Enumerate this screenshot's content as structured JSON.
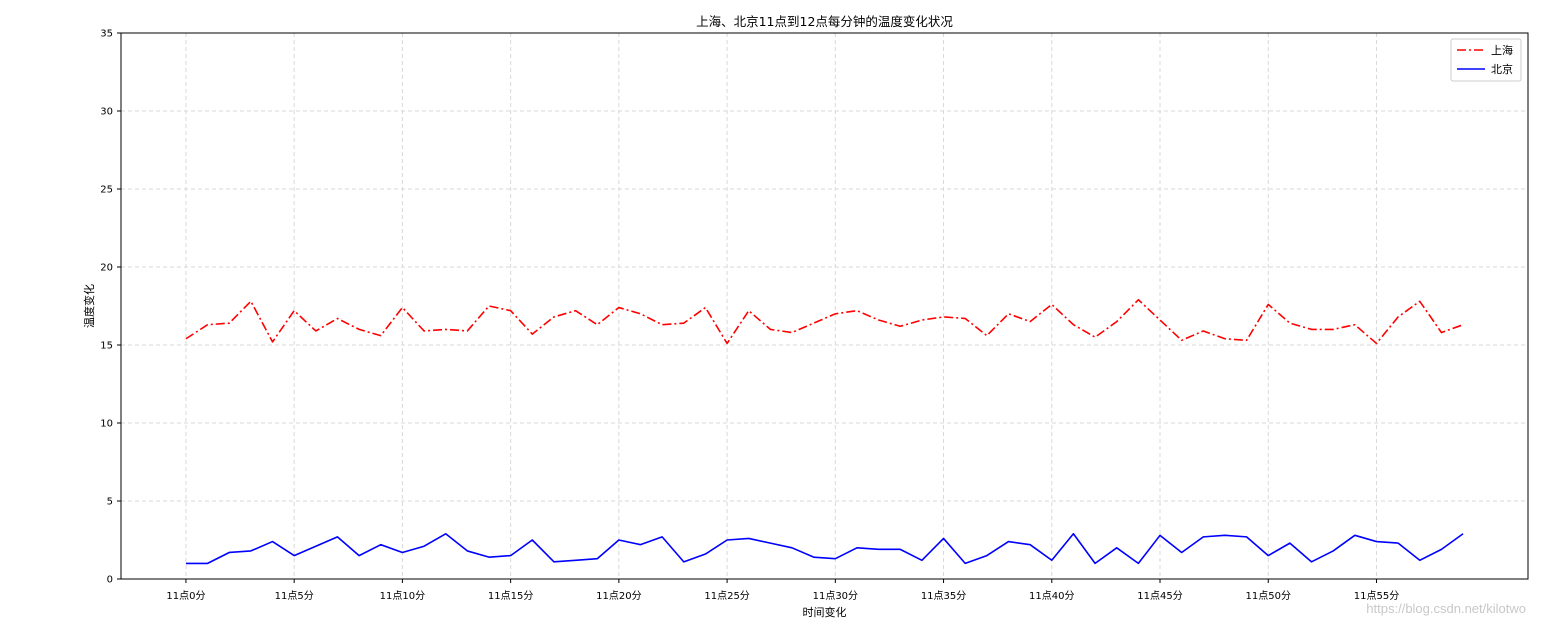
{
  "chart_data": {
    "type": "line",
    "title": "上海、北京11点到12点每分钟的温度变化状况",
    "xlabel": "时间变化",
    "ylabel": "温度变化",
    "x": [
      0,
      1,
      2,
      3,
      4,
      5,
      6,
      7,
      8,
      9,
      10,
      11,
      12,
      13,
      14,
      15,
      16,
      17,
      18,
      19,
      20,
      21,
      22,
      23,
      24,
      25,
      26,
      27,
      28,
      29,
      30,
      31,
      32,
      33,
      34,
      35,
      36,
      37,
      38,
      39,
      40,
      41,
      42,
      43,
      44,
      45,
      46,
      47,
      48,
      49,
      50,
      51,
      52,
      53,
      54,
      55,
      56,
      57,
      58,
      59
    ],
    "xticks": [
      0,
      5,
      10,
      15,
      20,
      25,
      30,
      35,
      40,
      45,
      50,
      55
    ],
    "xticklabels": [
      "11点0分",
      "11点5分",
      "11点10分",
      "11点15分",
      "11点20分",
      "11点25分",
      "11点30分",
      "11点35分",
      "11点40分",
      "11点45分",
      "11点50分",
      "11点55分"
    ],
    "ylim": [
      0,
      35
    ],
    "yticks": [
      0,
      5,
      10,
      15,
      20,
      25,
      30,
      35
    ],
    "grid": true,
    "legend_position": "top-right",
    "series": [
      {
        "name": "上海",
        "color": "#ff0000",
        "linestyle": "dashdot",
        "values": [
          15.4,
          16.3,
          16.4,
          17.8,
          15.2,
          17.2,
          15.9,
          16.7,
          16.0,
          15.6,
          17.4,
          15.9,
          16.0,
          15.9,
          17.5,
          17.2,
          15.7,
          16.8,
          17.2,
          16.3,
          17.4,
          17.0,
          16.3,
          16.4,
          17.4,
          15.1,
          17.2,
          16.0,
          15.8,
          16.4,
          17.0,
          17.2,
          16.6,
          16.2,
          16.6,
          16.8,
          16.7,
          15.6,
          17.0,
          16.5,
          17.6,
          16.3,
          15.5,
          16.5,
          17.9,
          16.6,
          15.3,
          15.9,
          15.4,
          15.3,
          17.6,
          16.4,
          16.0,
          16.0,
          16.3,
          15.1,
          16.8,
          17.8,
          15.8,
          16.3
        ]
      },
      {
        "name": "北京",
        "color": "#0000ff",
        "linestyle": "solid",
        "values": [
          1.0,
          1.0,
          1.7,
          1.8,
          2.4,
          1.5,
          2.1,
          2.7,
          1.5,
          2.2,
          1.7,
          2.1,
          2.9,
          1.8,
          1.4,
          1.5,
          2.5,
          1.1,
          1.2,
          1.3,
          2.5,
          2.2,
          2.7,
          1.1,
          1.6,
          2.5,
          2.6,
          2.3,
          2.0,
          1.4,
          1.3,
          2.0,
          1.9,
          1.9,
          1.2,
          2.6,
          1.0,
          1.5,
          2.4,
          2.2,
          1.2,
          2.9,
          1.0,
          2.0,
          1.0,
          2.8,
          1.7,
          2.7,
          2.8,
          2.7,
          1.5,
          2.3,
          1.1,
          1.8,
          2.8,
          2.4,
          2.3,
          1.2,
          1.9,
          2.9
        ]
      }
    ]
  },
  "watermark": "https://blog.csdn.net/kilotwo"
}
